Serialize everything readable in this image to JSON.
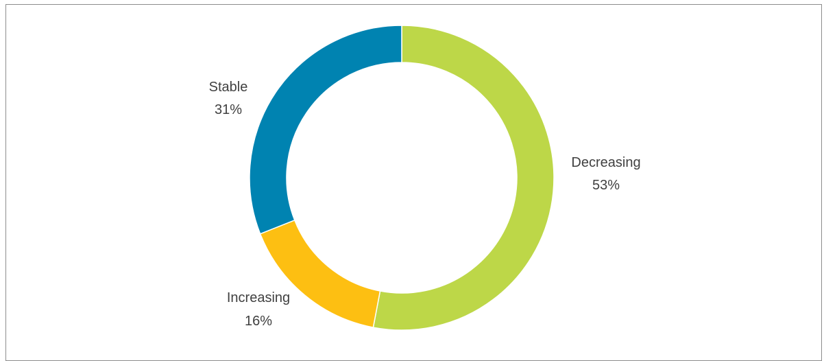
{
  "chart_data": {
    "type": "pie",
    "categories": [
      "Decreasing",
      "Increasing",
      "Stable"
    ],
    "values": [
      53,
      16,
      31
    ],
    "value_labels": [
      "53%",
      "16%",
      "31%"
    ],
    "colors": [
      "#BDD748",
      "#FDBF12",
      "#0083B1"
    ],
    "title": "",
    "donut": true,
    "start": "12 o'clock",
    "direction": "clockwise",
    "legend": "none",
    "data_labels": "outside"
  }
}
